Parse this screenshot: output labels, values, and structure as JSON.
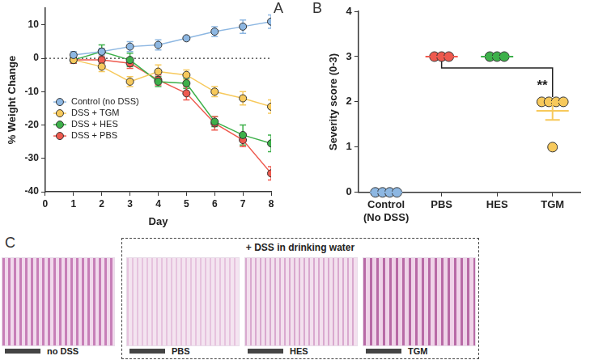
{
  "panel_labels": [
    "A",
    "B",
    "C"
  ],
  "chart_data": [
    {
      "type": "line",
      "x": [
        1,
        2,
        3,
        4,
        5,
        6,
        7,
        8
      ],
      "xlim": [
        0,
        8
      ],
      "xticks": [
        0,
        1,
        2,
        3,
        4,
        5,
        6,
        7,
        8
      ],
      "ylim": [
        -40,
        15
      ],
      "yticks": [
        -40,
        -30,
        -20,
        -10,
        0,
        10
      ],
      "x_label": "Day",
      "y_label": "% Weight Change",
      "grid": false,
      "legend": "left",
      "reference_y": 0,
      "series": [
        {
          "name": "Control (no DSS)",
          "color": "#8db7e2",
          "marker": "circle",
          "line_style": "solid",
          "values": [
            1,
            2,
            3.5,
            4,
            6,
            8,
            9.5,
            11
          ],
          "errors": [
            1,
            1,
            1.5,
            1.5,
            0.5,
            1.5,
            2,
            2
          ]
        },
        {
          "name": "DSS + TGM",
          "color": "#f7c95c",
          "marker": "circle",
          "line_style": "solid",
          "values": [
            -0.5,
            -2.5,
            -7,
            -4,
            -5,
            -10,
            -12,
            -14.5
          ],
          "errors": [
            1,
            1.5,
            1.5,
            2,
            1.5,
            1.5,
            2,
            2
          ]
        },
        {
          "name": "DSS + HES",
          "color": "#3db04a",
          "marker": "circle",
          "line_style": "solid",
          "values": [
            -0.5,
            2,
            -0.5,
            -7,
            -7.5,
            -19,
            -23,
            -25.5
          ],
          "errors": [
            1,
            2,
            2,
            1.5,
            1.5,
            1.5,
            3,
            2.5
          ]
        },
        {
          "name": "DSS + PBS",
          "color": "#ee5a4f",
          "marker": "circle",
          "line_style": "solid",
          "values": [
            -0.5,
            -0.5,
            -1.5,
            -6.5,
            -10.5,
            -19.5,
            -24.5,
            -34.5
          ],
          "errors": [
            1,
            1,
            1.5,
            1.5,
            2,
            2,
            2,
            2
          ]
        }
      ]
    },
    {
      "type": "strip",
      "categories": [
        "Control\n(No DSS)",
        "PBS",
        "HES",
        "TGM"
      ],
      "y_label": "Severity score (0-3)",
      "ylim": [
        0,
        4
      ],
      "yticks": [
        0,
        1,
        2,
        3,
        4
      ],
      "grid": false,
      "marker": "circle",
      "colors": [
        "#8db7e2",
        "#ee5a4f",
        "#3db04a",
        "#f7c95c"
      ],
      "points": [
        [
          0,
          0,
          0,
          0
        ],
        [
          3,
          3,
          3
        ],
        [
          3,
          3,
          3
        ],
        [
          2,
          2,
          2,
          2,
          1
        ]
      ],
      "means": [
        0,
        3,
        3,
        1.8
      ],
      "errors": [
        0,
        0,
        0,
        0.2
      ],
      "annotations": [
        {
          "from": "PBS",
          "to": "TGM",
          "text": "**"
        }
      ]
    }
  ],
  "histology": {
    "group_label": "+ DSS in drinking water",
    "labels": [
      "no DSS",
      "PBS",
      "HES",
      "TGM"
    ]
  }
}
